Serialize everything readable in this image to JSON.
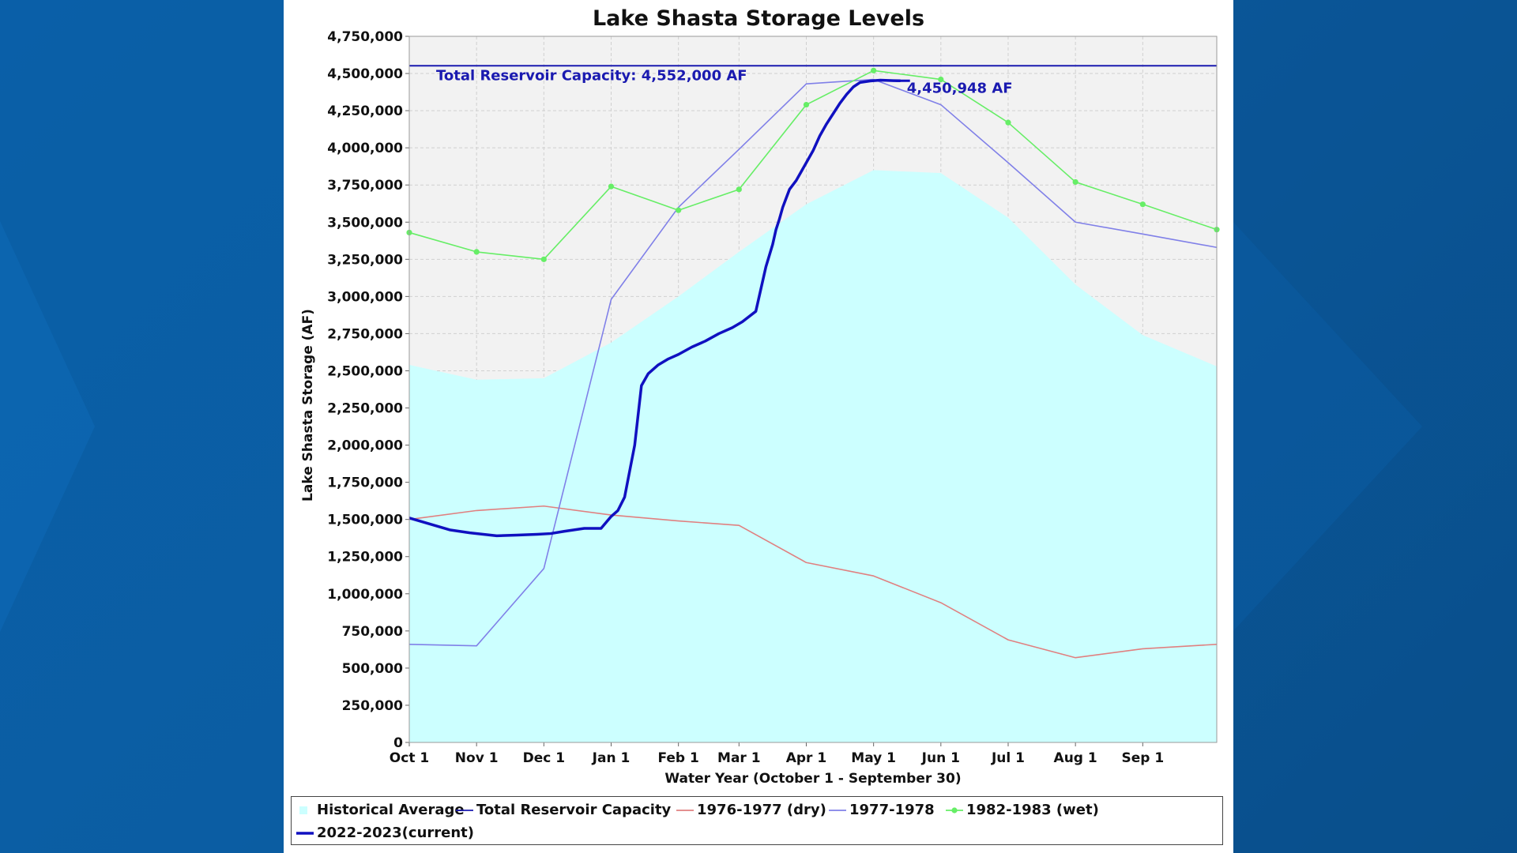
{
  "colors": {
    "background": "#0b5a9e",
    "panel": "#ffffff",
    "plot_background": "#f2f2f2",
    "historical_average": "#ccffff",
    "capacity_line": "#1a1ab0",
    "dry": "#e08080",
    "y1977_1978": "#8080e8",
    "wet": "#66ee66",
    "current": "#1010c0"
  },
  "chart_data": {
    "type": "line",
    "title": "Lake Shasta Storage Levels",
    "xlabel": "Water Year (October 1 - September 30)",
    "ylabel": "Lake Shasta Storage (AF)",
    "ylim": [
      0,
      4750000
    ],
    "xlim": [
      0,
      12
    ],
    "x_tick_labels": [
      "Oct 1",
      "Nov 1",
      "Dec 1",
      "Jan 1",
      "Feb 1",
      "Mar 1",
      "Apr 1",
      "May 1",
      "Jun 1",
      "Jul 1",
      "Aug 1",
      "Sep 1"
    ],
    "x_tick_positions": [
      0,
      1,
      2,
      3,
      4,
      4.9,
      5.9,
      6.9,
      7.9,
      8.9,
      9.9,
      10.9
    ],
    "y_tick_labels": [
      "0",
      "250,000",
      "500,000",
      "750,000",
      "1,000,000",
      "1,250,000",
      "1,500,000",
      "1,750,000",
      "2,000,000",
      "2,250,000",
      "2,500,000",
      "2,750,000",
      "3,000,000",
      "3,250,000",
      "3,500,000",
      "3,750,000",
      "4,000,000",
      "4,250,000",
      "4,500,000",
      "4,750,000"
    ],
    "y_tick_values": [
      0,
      250000,
      500000,
      750000,
      1000000,
      1250000,
      1500000,
      1750000,
      2000000,
      2250000,
      2500000,
      2750000,
      3000000,
      3250000,
      3500000,
      3750000,
      4000000,
      4250000,
      4500000,
      4750000
    ],
    "grid": true,
    "legend_position": "bottom",
    "capacity": {
      "name": "Total Reservoir Capacity",
      "value": 4552000,
      "label": "Total Reservoir Capacity: 4,552,000 AF"
    },
    "current_label": "4,450,948 AF",
    "series": [
      {
        "name": "Historical Average",
        "kind": "area",
        "color": "#ccffff",
        "x": [
          0,
          1,
          2,
          3,
          4,
          4.9,
          5.9,
          6.9,
          7.9,
          8.9,
          9.9,
          10.9,
          12
        ],
        "values": [
          2540000,
          2440000,
          2450000,
          2690000,
          3000000,
          3300000,
          3620000,
          3850000,
          3830000,
          3530000,
          3080000,
          2740000,
          2530000
        ]
      },
      {
        "name": "Total Reservoir Capacity",
        "kind": "hline",
        "color": "#1a1ab0"
      },
      {
        "name": "1976-1977 (dry)",
        "kind": "line",
        "color": "#e08080",
        "x": [
          0,
          1,
          2,
          3,
          4,
          4.9,
          5.9,
          6.9,
          7.9,
          8.9,
          9.9,
          10.9,
          12
        ],
        "values": [
          1500000,
          1560000,
          1590000,
          1530000,
          1490000,
          1460000,
          1210000,
          1120000,
          940000,
          690000,
          570000,
          630000,
          660000
        ]
      },
      {
        "name": "1977-1978",
        "kind": "line",
        "color": "#8080e8",
        "x": [
          0,
          1,
          2,
          3,
          4,
          4.9,
          5.9,
          6.9,
          7.9,
          8.9,
          9.9,
          10.9,
          12
        ],
        "values": [
          660000,
          650000,
          1170000,
          2980000,
          3600000,
          3990000,
          4430000,
          4460000,
          4290000,
          3900000,
          3500000,
          3420000,
          3330000
        ]
      },
      {
        "name": "1982-1983 (wet)",
        "kind": "line_markers",
        "color": "#66ee66",
        "x": [
          0,
          1,
          2,
          3,
          4,
          4.9,
          5.9,
          6.9,
          7.9,
          8.9,
          9.9,
          10.9,
          12
        ],
        "values": [
          3430000,
          3300000,
          3250000,
          3740000,
          3580000,
          3720000,
          4290000,
          4520000,
          4460000,
          4170000,
          3770000,
          3620000,
          3450000
        ]
      },
      {
        "name": "2022-2023(current)",
        "kind": "line_bold",
        "color": "#1010c0",
        "x": [
          0,
          0.3,
          0.6,
          0.9,
          1.1,
          1.3,
          1.6,
          1.9,
          2.1,
          2.3,
          2.6,
          2.85,
          3.0,
          3.1,
          3.2,
          3.35,
          3.45,
          3.55,
          3.7,
          3.85,
          4.0,
          4.2,
          4.4,
          4.6,
          4.8,
          4.95,
          5.15,
          5.3,
          5.4,
          5.45,
          5.5,
          5.55,
          5.6,
          5.65,
          5.75,
          5.85,
          6.0,
          6.1,
          6.2,
          6.3,
          6.4,
          6.5,
          6.6,
          6.7,
          6.85,
          7.0,
          7.2,
          7.3
        ],
        "values": [
          1510000,
          1470000,
          1430000,
          1410000,
          1400000,
          1390000,
          1395000,
          1400000,
          1405000,
          1420000,
          1440000,
          1440000,
          1520000,
          1560000,
          1650000,
          2000000,
          2400000,
          2480000,
          2540000,
          2580000,
          2610000,
          2660000,
          2700000,
          2750000,
          2790000,
          2830000,
          2900000,
          3200000,
          3350000,
          3450000,
          3520000,
          3600000,
          3660000,
          3720000,
          3780000,
          3860000,
          3980000,
          4080000,
          4160000,
          4230000,
          4300000,
          4360000,
          4410000,
          4440000,
          4450000,
          4455000,
          4452000,
          4450948
        ]
      }
    ],
    "legend": [
      {
        "label": "Historical Average",
        "kind": "area",
        "color": "#ccffff"
      },
      {
        "label": "Total Reservoir Capacity",
        "kind": "line",
        "color": "#1a1ab0"
      },
      {
        "label": "1976-1977 (dry)",
        "kind": "line",
        "color": "#e08080"
      },
      {
        "label": "1977-1978",
        "kind": "line",
        "color": "#8080e8"
      },
      {
        "label": "1982-1983 (wet)",
        "kind": "line_markers",
        "color": "#66ee66"
      },
      {
        "label": "2022-2023(current)",
        "kind": "line_bold",
        "color": "#1010c0"
      }
    ]
  }
}
